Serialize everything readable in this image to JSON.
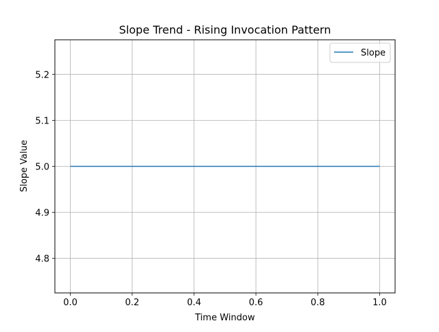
{
  "chart_data": {
    "type": "line",
    "title": "Slope Trend - Rising Invocation Pattern",
    "xlabel": "Time Window",
    "ylabel": "Slope Value",
    "xlim": [
      -0.05,
      1.05
    ],
    "ylim": [
      4.725,
      5.275
    ],
    "xticks": [
      0.0,
      0.2,
      0.4,
      0.6,
      0.8,
      1.0
    ],
    "xtick_labels": [
      "0.0",
      "0.2",
      "0.4",
      "0.6",
      "0.8",
      "1.0"
    ],
    "yticks": [
      4.8,
      4.9,
      5.0,
      5.1,
      5.2
    ],
    "ytick_labels": [
      "4.8",
      "4.9",
      "5.0",
      "5.1",
      "5.2"
    ],
    "grid": true,
    "legend_position": "top-right",
    "series": [
      {
        "name": "Slope",
        "color": "#1f77b4",
        "x": [
          0.0,
          1.0
        ],
        "y": [
          5.0,
          5.0
        ]
      }
    ]
  }
}
